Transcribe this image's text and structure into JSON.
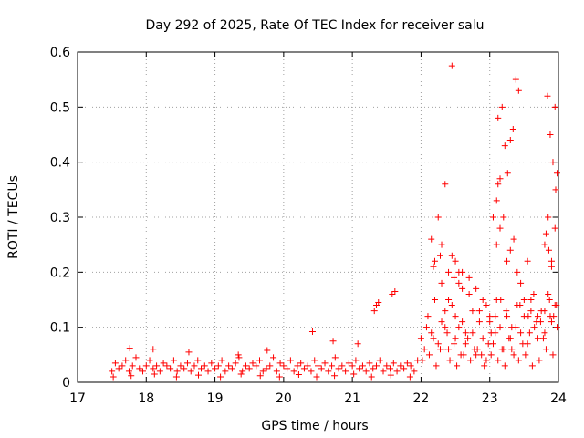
{
  "chart_data": {
    "type": "scatter",
    "title": "Day 292 of 2025, Rate Of TEC Index for receiver salu",
    "xlabel": "GPS time / hours",
    "ylabel": "ROTI / TECUs",
    "xlim": [
      17,
      24
    ],
    "ylim": [
      0,
      0.6
    ],
    "x_ticks": [
      "17",
      "18",
      "19",
      "20",
      "21",
      "22",
      "23",
      "24"
    ],
    "y_ticks": [
      "0",
      "0.1",
      "0.2",
      "0.3",
      "0.4",
      "0.5",
      "0.6"
    ],
    "grid": true,
    "marker": "+",
    "color": "#ff0000",
    "series": [
      {
        "x": [
          17.5,
          17.55,
          17.6,
          17.65,
          17.7,
          17.75,
          17.8,
          17.85,
          17.9,
          17.95,
          18.0,
          18.05,
          18.1,
          18.15,
          18.2,
          18.25,
          18.3,
          18.35,
          18.4,
          18.45,
          18.5,
          18.55,
          18.6,
          18.65,
          18.7,
          18.75,
          18.8,
          18.85,
          18.9,
          18.95,
          19.0,
          19.05,
          19.1,
          19.15,
          19.2,
          19.25,
          19.3,
          19.35,
          19.4,
          19.45,
          19.5,
          19.55,
          19.6,
          19.65,
          19.7,
          19.75,
          19.8,
          19.85,
          19.9,
          19.95,
          20.0,
          20.05,
          20.1,
          20.15,
          20.2,
          20.25,
          20.3,
          20.35,
          20.4,
          20.45,
          20.5,
          20.55,
          20.6,
          20.65,
          20.7,
          20.75,
          20.8,
          20.85,
          20.9,
          20.95,
          21.0,
          21.05,
          21.1,
          21.15,
          21.2,
          21.25,
          21.3,
          21.35,
          21.4,
          21.45,
          21.5,
          21.55,
          21.6,
          21.65,
          21.7,
          21.75,
          21.8,
          21.85,
          21.9,
          21.95,
          17.52,
          17.78,
          18.12,
          18.44,
          18.76,
          19.08,
          19.38,
          19.66,
          19.94,
          20.22,
          20.48,
          20.74,
          21.02,
          21.28,
          21.56,
          21.84,
          17.76,
          18.1,
          18.62,
          19.34,
          19.76,
          20.42,
          20.72,
          21.08,
          21.32,
          21.35,
          21.38,
          21.58,
          21.62,
          22.0,
          22.05,
          22.1,
          22.15,
          22.2,
          22.25,
          22.3,
          22.35,
          22.4,
          22.45,
          22.5,
          22.55,
          22.6,
          22.65,
          22.7,
          22.75,
          22.8,
          22.85,
          22.9,
          22.95,
          23.0,
          23.05,
          23.1,
          23.15,
          23.2,
          23.25,
          23.3,
          23.35,
          23.4,
          23.45,
          23.5,
          23.55,
          23.6,
          23.65,
          23.7,
          23.75,
          23.8,
          23.85,
          23.9,
          23.95,
          22.02,
          22.12,
          22.22,
          22.32,
          22.42,
          22.52,
          22.62,
          22.72,
          22.82,
          22.92,
          23.02,
          23.12,
          23.22,
          23.32,
          23.42,
          23.52,
          23.62,
          23.72,
          23.82,
          23.92,
          22.08,
          22.18,
          22.28,
          22.38,
          22.48,
          22.58,
          22.68,
          22.78,
          22.88,
          22.98,
          23.08,
          23.18,
          23.28,
          23.38,
          23.48,
          23.58,
          23.68,
          23.78,
          23.88,
          23.98,
          22.15,
          22.2,
          22.25,
          22.3,
          22.35,
          22.4,
          22.45,
          22.5,
          22.55,
          22.6,
          22.7,
          22.8,
          22.9,
          23.0,
          23.05,
          23.1,
          23.12,
          23.15,
          23.2,
          23.25,
          23.3,
          23.35,
          23.4,
          23.45,
          23.5,
          23.55,
          23.6,
          23.7,
          23.8,
          23.85,
          23.9,
          23.95,
          22.45,
          22.18,
          22.28,
          22.48,
          22.6,
          23.12,
          23.18,
          23.22,
          23.26,
          23.3,
          23.34,
          23.38,
          23.42,
          23.84,
          23.88,
          23.92,
          23.96,
          23.95,
          23.98,
          23.1,
          23.15,
          23.05,
          23.9,
          23.86,
          23.82,
          22.3,
          22.35,
          22.4,
          22.5,
          22.55,
          22.65,
          22.75,
          22.85,
          22.95,
          23.02,
          23.08,
          23.16,
          23.24,
          23.32,
          23.44,
          23.56,
          23.64,
          23.74,
          23.8,
          23.87,
          23.93,
          23.97
        ],
        "y": [
          0.02,
          0.035,
          0.025,
          0.03,
          0.04,
          0.02,
          0.03,
          0.045,
          0.025,
          0.02,
          0.03,
          0.04,
          0.025,
          0.03,
          0.02,
          0.035,
          0.03,
          0.025,
          0.04,
          0.02,
          0.03,
          0.025,
          0.035,
          0.02,
          0.03,
          0.04,
          0.025,
          0.03,
          0.02,
          0.035,
          0.025,
          0.03,
          0.04,
          0.02,
          0.03,
          0.025,
          0.035,
          0.045,
          0.02,
          0.03,
          0.025,
          0.035,
          0.03,
          0.04,
          0.02,
          0.025,
          0.03,
          0.045,
          0.02,
          0.035,
          0.03,
          0.025,
          0.04,
          0.02,
          0.03,
          0.035,
          0.025,
          0.03,
          0.02,
          0.04,
          0.03,
          0.025,
          0.035,
          0.02,
          0.03,
          0.045,
          0.025,
          0.03,
          0.02,
          0.035,
          0.03,
          0.04,
          0.025,
          0.03,
          0.02,
          0.035,
          0.025,
          0.03,
          0.04,
          0.02,
          0.03,
          0.025,
          0.035,
          0.02,
          0.03,
          0.025,
          0.035,
          0.03,
          0.02,
          0.04,
          0.01,
          0.012,
          0.015,
          0.01,
          0.013,
          0.01,
          0.015,
          0.012,
          0.01,
          0.014,
          0.01,
          0.012,
          0.015,
          0.01,
          0.013,
          0.01,
          0.062,
          0.06,
          0.055,
          0.05,
          0.058,
          0.092,
          0.075,
          0.07,
          0.13,
          0.14,
          0.145,
          0.16,
          0.165,
          0.08,
          0.06,
          0.12,
          0.09,
          0.15,
          0.07,
          0.18,
          0.1,
          0.06,
          0.14,
          0.08,
          0.2,
          0.11,
          0.07,
          0.16,
          0.09,
          0.05,
          0.13,
          0.08,
          0.04,
          0.11,
          0.07,
          0.15,
          0.1,
          0.06,
          0.12,
          0.08,
          0.05,
          0.14,
          0.09,
          0.12,
          0.07,
          0.15,
          0.1,
          0.08,
          0.13,
          0.09,
          0.16,
          0.11,
          0.14,
          0.04,
          0.05,
          0.03,
          0.06,
          0.04,
          0.03,
          0.05,
          0.04,
          0.06,
          0.03,
          0.05,
          0.04,
          0.03,
          0.06,
          0.04,
          0.05,
          0.03,
          0.04,
          0.06,
          0.05,
          0.1,
          0.08,
          0.06,
          0.09,
          0.07,
          0.05,
          0.08,
          0.06,
          0.05,
          0.07,
          0.09,
          0.06,
          0.08,
          0.1,
          0.07,
          0.09,
          0.11,
          0.08,
          0.12,
          0.1,
          0.26,
          0.22,
          0.3,
          0.25,
          0.36,
          0.2,
          0.23,
          0.22,
          0.18,
          0.2,
          0.19,
          0.17,
          0.15,
          0.12,
          0.3,
          0.25,
          0.36,
          0.28,
          0.3,
          0.22,
          0.24,
          0.26,
          0.2,
          0.18,
          0.15,
          0.22,
          0.13,
          0.12,
          0.25,
          0.3,
          0.22,
          0.28,
          0.575,
          0.21,
          0.23,
          0.19,
          0.17,
          0.48,
          0.5,
          0.43,
          0.38,
          0.44,
          0.46,
          0.55,
          0.53,
          0.52,
          0.45,
          0.4,
          0.35,
          0.5,
          0.38,
          0.33,
          0.37,
          0.3,
          0.21,
          0.24,
          0.27,
          0.11,
          0.13,
          0.15,
          0.12,
          0.1,
          0.09,
          0.13,
          0.11,
          0.14,
          0.09,
          0.12,
          0.15,
          0.13,
          0.1,
          0.14,
          0.12,
          0.16,
          0.11,
          0.13,
          0.15,
          0.12,
          0.14
        ]
      }
    ]
  }
}
